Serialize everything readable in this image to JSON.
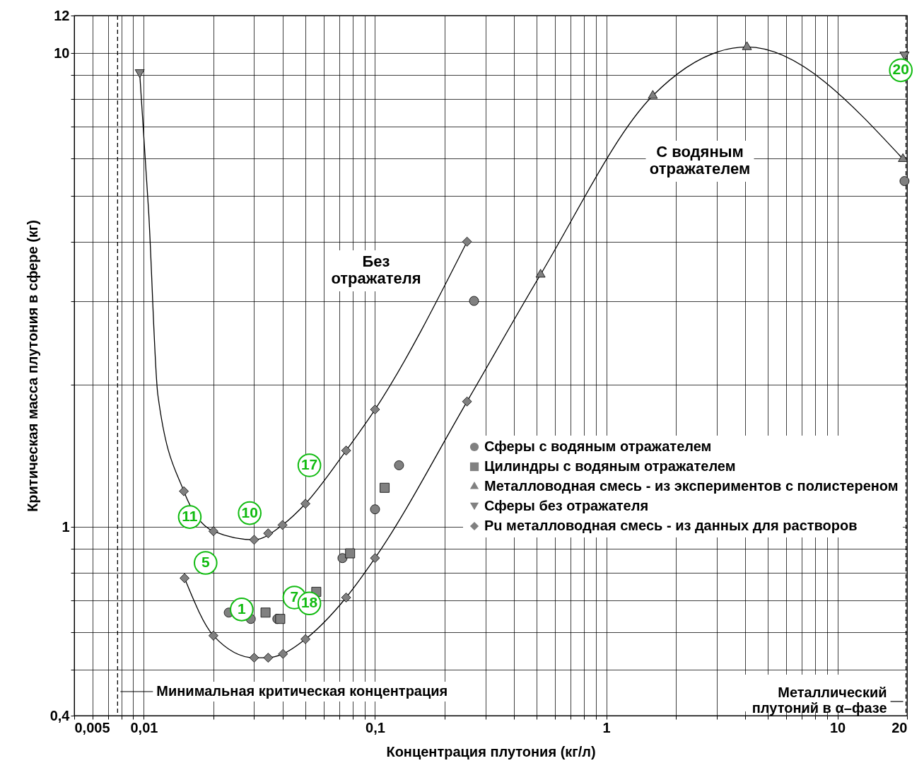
{
  "chart_data": {
    "type": "scatter",
    "xlabel": "Концентрация плутония (кг/л)",
    "ylabel": "Критическая масса плутония в сфере  (кг)",
    "log": "xy",
    "grid": true,
    "legend": "right",
    "xlim": [
      0.005,
      20
    ],
    "ylim": [
      0.4,
      12
    ],
    "xticks": [
      {
        "value": 0.005,
        "label": "0,005"
      },
      {
        "value": 0.006,
        "label": null
      },
      {
        "value": 0.007,
        "label": null
      },
      {
        "value": 0.008,
        "label": null
      },
      {
        "value": 0.009,
        "label": null
      },
      {
        "value": 0.01,
        "label": "0,01"
      },
      {
        "value": 0.02,
        "label": null
      },
      {
        "value": 0.03,
        "label": null
      },
      {
        "value": 0.04,
        "label": null
      },
      {
        "value": 0.05,
        "label": null
      },
      {
        "value": 0.06,
        "label": null
      },
      {
        "value": 0.07,
        "label": null
      },
      {
        "value": 0.08,
        "label": null
      },
      {
        "value": 0.09,
        "label": null
      },
      {
        "value": 0.1,
        "label": "0,1"
      },
      {
        "value": 0.2,
        "label": null
      },
      {
        "value": 0.3,
        "label": null
      },
      {
        "value": 0.4,
        "label": null
      },
      {
        "value": 0.5,
        "label": null
      },
      {
        "value": 0.6,
        "label": null
      },
      {
        "value": 0.7,
        "label": null
      },
      {
        "value": 0.8,
        "label": null
      },
      {
        "value": 0.9,
        "label": null
      },
      1,
      {
        "value": 2,
        "label": null
      },
      {
        "value": 3,
        "label": null
      },
      {
        "value": 4,
        "label": null
      },
      {
        "value": 5,
        "label": null
      },
      {
        "value": 6,
        "label": null
      },
      {
        "value": 7,
        "label": null
      },
      {
        "value": 8,
        "label": null
      },
      {
        "value": 9,
        "label": null
      },
      10,
      20
    ],
    "yticks": [
      {
        "value": 0.4,
        "label": "0,4"
      },
      {
        "value": 0.5,
        "label": null
      },
      {
        "value": 0.6,
        "label": null
      },
      {
        "value": 0.7,
        "label": null
      },
      {
        "value": 0.8,
        "label": null
      },
      {
        "value": 0.9,
        "label": null
      },
      1,
      {
        "value": 2,
        "label": null
      },
      {
        "value": 3,
        "label": null
      },
      {
        "value": 4,
        "label": null
      },
      {
        "value": 5,
        "label": null
      },
      {
        "value": 6,
        "label": null
      },
      {
        "value": 7,
        "label": null
      },
      {
        "value": 8,
        "label": null
      },
      {
        "value": 9,
        "label": null
      },
      10,
      12
    ],
    "series": [
      {
        "type": "line",
        "marker": "none",
        "color": "#000000",
        "x": [
          0.0096,
          0.0105,
          0.0115,
          0.0149,
          0.02,
          0.03,
          0.0398,
          0.05,
          0.075,
          0.1,
          0.25
        ],
        "values": [
          9.05,
          4.6,
          1.9,
          1.19,
          0.98,
          0.94,
          1.01,
          1.12,
          1.45,
          1.77,
          4.0
        ]
      },
      {
        "type": "line",
        "marker": "none",
        "color": "#000000",
        "x": [
          0.015,
          0.02,
          0.03,
          0.0345,
          0.04,
          0.05,
          0.075,
          0.1,
          0.25,
          0.52,
          1.59,
          4.06,
          19.2
        ],
        "values": [
          0.78,
          0.59,
          0.53,
          0.53,
          0.54,
          0.58,
          0.71,
          0.86,
          1.84,
          3.41,
          8.13,
          10.3,
          5.98
        ]
      },
      {
        "name": "Сферы с водяным отражателем",
        "marker": "circle",
        "color": "#808080",
        "x": [
          0.0233,
          0.029,
          0.0378,
          0.0723,
          0.1,
          0.127,
          0.268,
          19.5
        ],
        "values": [
          0.66,
          0.64,
          0.64,
          0.86,
          1.09,
          1.35,
          3.0,
          5.37
        ]
      },
      {
        "name": "Цилиндры с водяным отражателем",
        "marker": "square",
        "color": "#808080",
        "x": [
          0.0336,
          0.0389,
          0.0557,
          0.078,
          0.11
        ],
        "values": [
          0.66,
          0.64,
          0.73,
          0.88,
          1.21
        ]
      },
      {
        "name": "Металловодная смесь - из экспериментов с полистереном",
        "marker": "triangle",
        "color": "#808080",
        "x": [
          0.52,
          1.59,
          4.06,
          19.2
        ],
        "values": [
          3.41,
          8.13,
          10.3,
          5.98
        ]
      },
      {
        "name": "Сферы без отражателя",
        "marker": "triangle-down",
        "color": "#808080",
        "x": [
          0.0096,
          19.5
        ],
        "values": [
          9.05,
          9.86
        ]
      },
      {
        "name": "Pu металловодная смесь - из данных для растворов",
        "marker": "diamond",
        "color": "#808080",
        "x": [
          0.0149,
          0.02,
          0.03,
          0.0345,
          0.0398,
          0.05,
          0.075,
          0.1,
          0.25,
          0.015,
          0.02,
          0.03,
          0.0345,
          0.04,
          0.05,
          0.075,
          0.1,
          0.25
        ],
        "values": [
          1.19,
          0.98,
          0.94,
          0.97,
          1.01,
          1.12,
          1.45,
          1.77,
          4.0,
          0.78,
          0.59,
          0.53,
          0.53,
          0.54,
          0.58,
          0.71,
          0.86,
          1.84
        ]
      }
    ],
    "ref_lines": [
      {
        "axis": "x",
        "value": 0.0077,
        "label": "Минимальная критическая концентрация",
        "line_style": "dashed",
        "color": "#000000"
      },
      {
        "axis": "x",
        "value": 19.8,
        "label": "Металлический\nплутоний  в α–фазе",
        "line_style": "dashed",
        "color": "#000000"
      }
    ],
    "annotations": [
      "Без\nотражателя",
      "С водяным\nотражателем",
      {
        "text": "11",
        "x": 0.0158,
        "y": 1.05
      },
      {
        "text": "10",
        "x": 0.0287,
        "y": 1.07
      },
      {
        "text": "17",
        "x": 0.052,
        "y": 1.35
      },
      {
        "text": "5",
        "x": 0.0185,
        "y": 0.84
      },
      {
        "text": "1",
        "x": 0.0265,
        "y": 0.67
      },
      {
        "text": "7",
        "x": 0.0448,
        "y": 0.71
      },
      {
        "text": "18",
        "x": 0.052,
        "y": 0.69
      },
      {
        "text": "20",
        "x": 18.8,
        "y": 9.2
      }
    ]
  }
}
